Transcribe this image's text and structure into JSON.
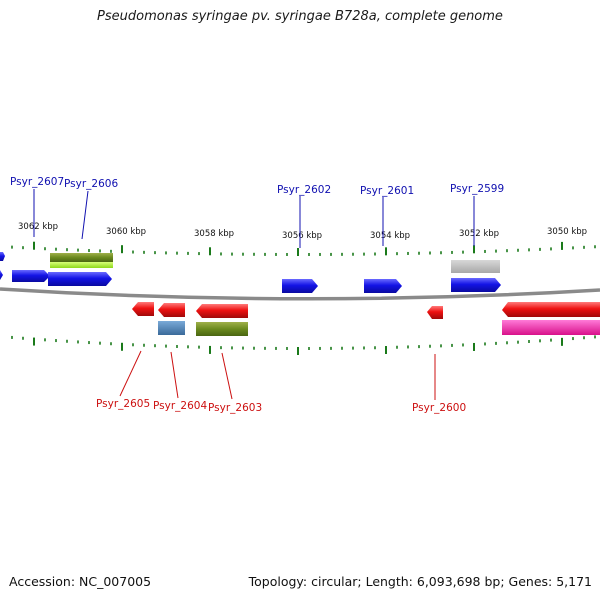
{
  "header": {
    "title": "Pseudomonas syringae pv. syringae B728a, complete genome"
  },
  "footer": {
    "accession": "Accession: NC_007005",
    "stats": "Topology: circular; Length: 6,093,698 bp; Genes: 5,171"
  },
  "scale": {
    "ticks": [
      "3062 kbp",
      "3060 kbp",
      "3058 kbp",
      "3056 kbp",
      "3054 kbp",
      "3052 kbp",
      "3050 kbp"
    ]
  },
  "genes": {
    "forward": [
      "Psyr_2607",
      "Psyr_2606",
      "Psyr_2602",
      "Psyr_2601",
      "Psyr_2599"
    ],
    "reverse": [
      "Psyr_2605",
      "Psyr_2604",
      "Psyr_2603",
      "Psyr_2600"
    ]
  },
  "colors": {
    "forward_gene": "#1414e6",
    "reverse_gene": "#ee1111",
    "backbone": "#888888",
    "tick": "#1a7a1a",
    "forward_label": "#1010b0",
    "reverse_label": "#cc1010"
  }
}
